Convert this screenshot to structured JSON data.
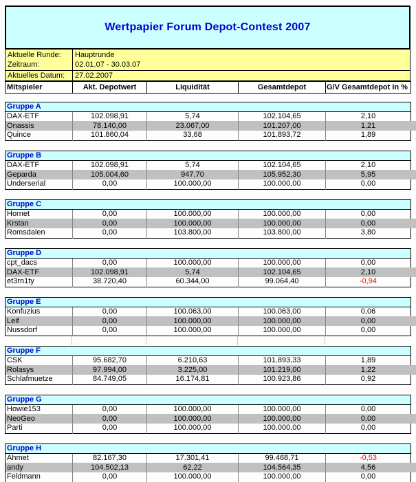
{
  "title": "Wertpapier Forum Depot-Contest 2007",
  "info": {
    "round_label": "Aktuelle Runde:",
    "round_value": "Hauptrunde",
    "period_label": "Zeitraum:",
    "period_value": "02.01.07 - 30.03.07",
    "date_label": "Aktuelles Datum:",
    "date_value": "27.02.2007"
  },
  "columns": [
    "Mitspieler",
    "Akt. Depotwert",
    "Liquidität",
    "Gesamtdepot",
    "G/V Gesamtdepot in %"
  ],
  "colors": {
    "title_background": "#CCFFFF",
    "info_background": "#FFFF99",
    "group_header_background": "#CCFFFF",
    "shaded_row": "#C0C0C0",
    "heading_text": "#0000CC",
    "negative_value": "#FF0000"
  },
  "groups": [
    {
      "name": "Gruppe A",
      "rows": [
        {
          "player": "DAX-ETF",
          "depotwert": "102.098,91",
          "liquiditaet": "5,74",
          "gesamtdepot": "102.104,65",
          "gv": "2,10"
        },
        {
          "player": "Onassis",
          "depotwert": "78.140,00",
          "liquiditaet": "23.067,00",
          "gesamtdepot": "101.207,00",
          "gv": "1,21"
        },
        {
          "player": "Quince",
          "depotwert": "101.860,04",
          "liquiditaet": "33,68",
          "gesamtdepot": "101.893,72",
          "gv": "1,89"
        }
      ]
    },
    {
      "name": "Gruppe B",
      "rows": [
        {
          "player": "DAX-ETF",
          "depotwert": "102.098,91",
          "liquiditaet": "5,74",
          "gesamtdepot": "102.104,65",
          "gv": "2,10"
        },
        {
          "player": "Geparda",
          "depotwert": "105.004,60",
          "liquiditaet": "947,70",
          "gesamtdepot": "105.952,30",
          "gv": "5,95"
        },
        {
          "player": "Underserial",
          "depotwert": "0,00",
          "liquiditaet": "100.000,00",
          "gesamtdepot": "100.000,00",
          "gv": "0,00"
        }
      ]
    },
    {
      "name": "Gruppe C",
      "rows": [
        {
          "player": "Hornet",
          "depotwert": "0,00",
          "liquiditaet": "100.000,00",
          "gesamtdepot": "100.000,00",
          "gv": "0,00"
        },
        {
          "player": "Krstan",
          "depotwert": "0,00",
          "liquiditaet": "100.000,00",
          "gesamtdepot": "100.000,00",
          "gv": "0,00"
        },
        {
          "player": "Romsdalen",
          "depotwert": "0,00",
          "liquiditaet": "103.800,00",
          "gesamtdepot": "103.800,00",
          "gv": "3,80"
        }
      ]
    },
    {
      "name": "Gruppe D",
      "rows": [
        {
          "player": "cpt_dacs",
          "depotwert": "0,00",
          "liquiditaet": "100.000,00",
          "gesamtdepot": "100.000,00",
          "gv": "0,00"
        },
        {
          "player": "DAX-ETF",
          "depotwert": "102.098,91",
          "liquiditaet": "5,74",
          "gesamtdepot": "102.104,65",
          "gv": "2,10"
        },
        {
          "player": "et3rn1ty",
          "depotwert": "38.720,40",
          "liquiditaet": "60.344,00",
          "gesamtdepot": "99.064,40",
          "gv": "-0,94"
        }
      ]
    },
    {
      "name": "Gruppe E",
      "gap_gridlines": true,
      "rows": [
        {
          "player": "Konfuzius",
          "depotwert": "0,00",
          "liquiditaet": "100.063,00",
          "gesamtdepot": "100.063,00",
          "gv": "0,06"
        },
        {
          "player": "Leif",
          "depotwert": "0,00",
          "liquiditaet": "100.000,00",
          "gesamtdepot": "100.000,00",
          "gv": "0,00"
        },
        {
          "player": "Nussdorf",
          "depotwert": "0,00",
          "liquiditaet": "100.000,00",
          "gesamtdepot": "100.000,00",
          "gv": "0,00"
        }
      ]
    },
    {
      "name": "Gruppe F",
      "rows": [
        {
          "player": "CSK",
          "depotwert": "95.682,70",
          "liquiditaet": "6.210,63",
          "gesamtdepot": "101.893,33",
          "gv": "1,89"
        },
        {
          "player": "Rolasys",
          "depotwert": "97.994,00",
          "liquiditaet": "3.225,00",
          "gesamtdepot": "101.219,00",
          "gv": "1,22"
        },
        {
          "player": "Schlafmuetze",
          "depotwert": "84.749,05",
          "liquiditaet": "16.174,81",
          "gesamtdepot": "100.923,86",
          "gv": "0,92"
        }
      ]
    },
    {
      "name": "Gruppe G",
      "rows": [
        {
          "player": "Howie153",
          "depotwert": "0,00",
          "liquiditaet": "100.000,00",
          "gesamtdepot": "100.000,00",
          "gv": "0,00"
        },
        {
          "player": "NeoGeo",
          "depotwert": "0,00",
          "liquiditaet": "100.000,00",
          "gesamtdepot": "100.000,00",
          "gv": "0,00"
        },
        {
          "player": "Parti",
          "depotwert": "0,00",
          "liquiditaet": "100.000,00",
          "gesamtdepot": "100.000,00",
          "gv": "0,00"
        }
      ]
    },
    {
      "name": "Gruppe H",
      "rows": [
        {
          "player": "Ahmet",
          "depotwert": "82.167,30",
          "liquiditaet": "17.301,41",
          "gesamtdepot": "99.468,71",
          "gv": "-0,53"
        },
        {
          "player": "andy",
          "depotwert": "104.502,13",
          "liquiditaet": "62,22",
          "gesamtdepot": "104.564,35",
          "gv": "4,56"
        },
        {
          "player": "Feldmann",
          "depotwert": "0,00",
          "liquiditaet": "100.000,00",
          "gesamtdepot": "100.000,00",
          "gv": "0,00"
        }
      ]
    }
  ]
}
